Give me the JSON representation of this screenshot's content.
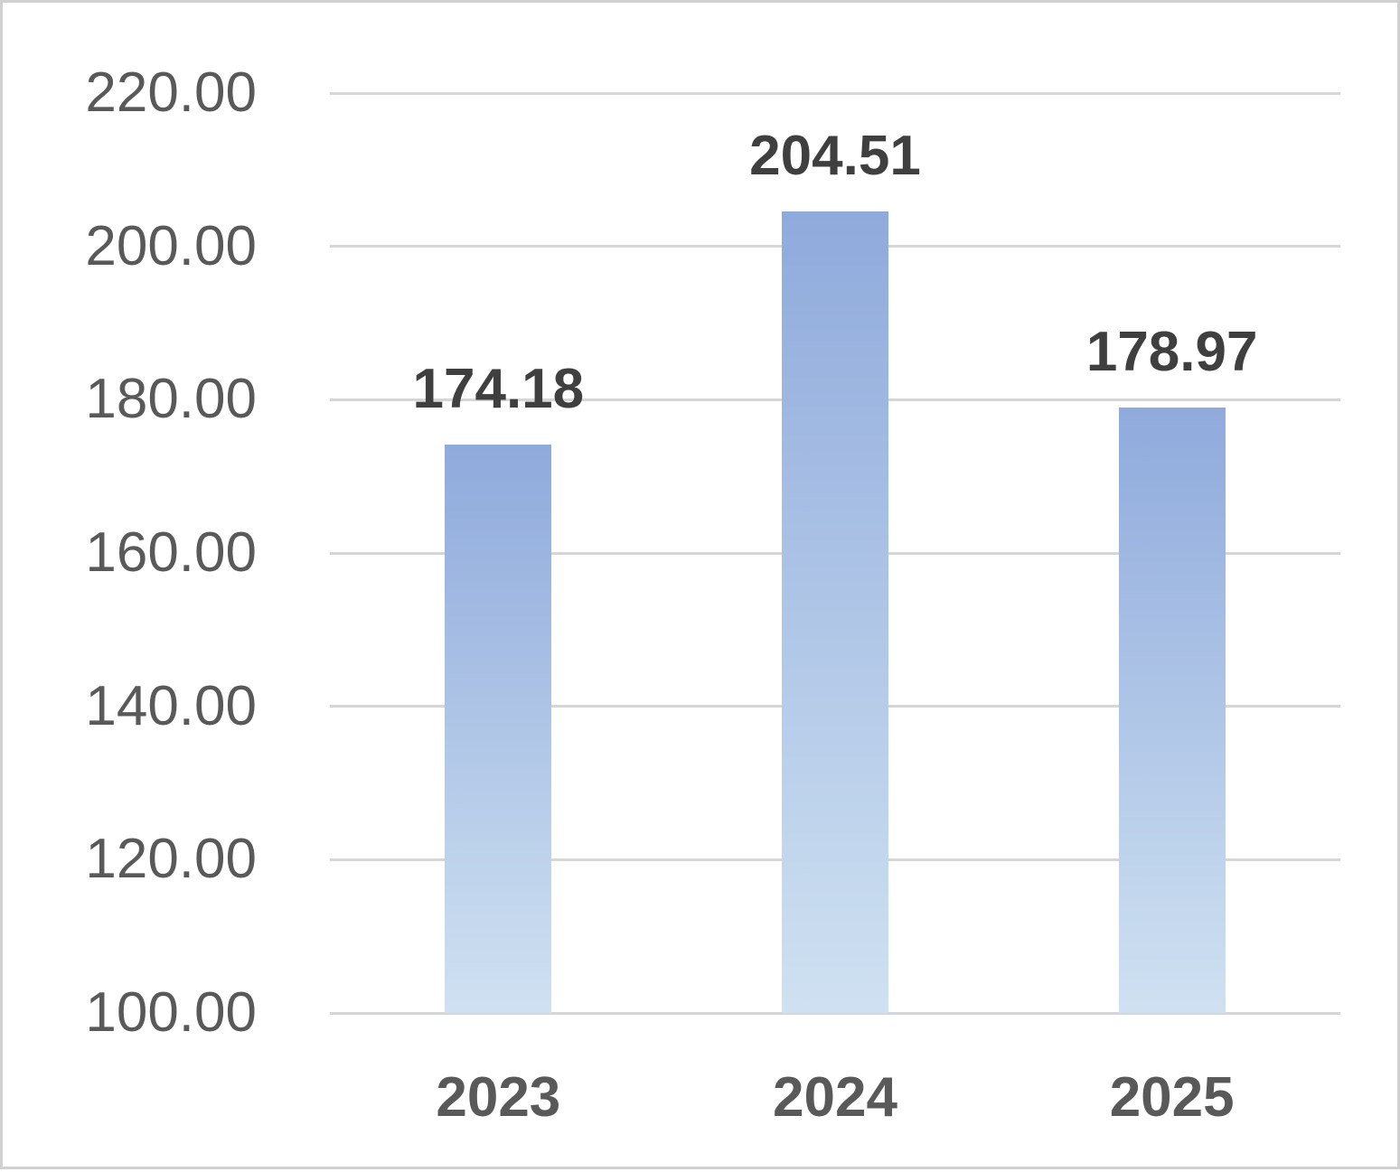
{
  "chart_data": {
    "type": "bar",
    "categories": [
      "2023",
      "2024",
      "2025"
    ],
    "values": [
      174.18,
      204.51,
      178.97
    ],
    "data_labels": [
      "174.18",
      "204.51",
      "178.97"
    ],
    "title": "",
    "xlabel": "",
    "ylabel": "",
    "ylim": [
      100,
      220
    ],
    "ytick_step": 20,
    "ytick_labels": [
      "220.00",
      "200.00",
      "180.00",
      "160.00",
      "140.00",
      "120.00",
      "100.00"
    ],
    "grid": true,
    "legend": false,
    "colors": {
      "bar_gradient_top": "#8faadc",
      "bar_gradient_bottom": "#cfe1f1",
      "gridline": "#d6d6d6",
      "tick_label": "#595959",
      "data_label": "#3f3f3f",
      "category_label": "#595959",
      "background": "#ffffff",
      "frame_border": "#d0d0d0"
    }
  }
}
